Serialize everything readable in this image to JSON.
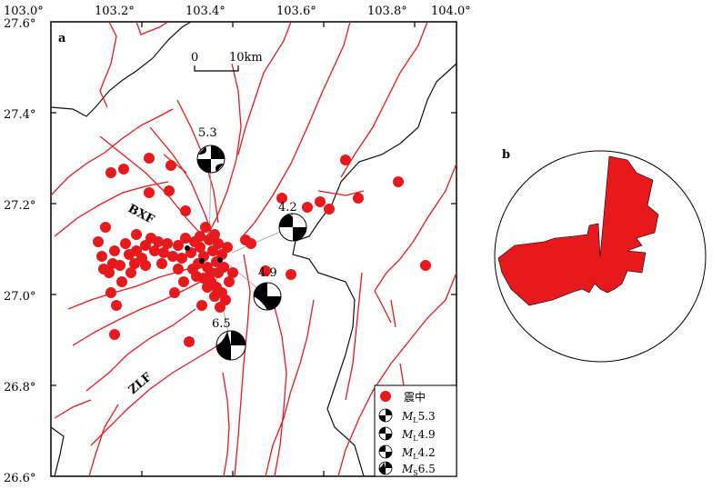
{
  "map": {
    "panel_label": "a",
    "lon_ticks": [
      "103.0°",
      "103.2°",
      "103.4°",
      "103.6°",
      "103.8°",
      "104.0°"
    ],
    "lat_ticks": [
      "27.6°",
      "27.4°",
      "27.2°",
      "27.0°",
      "26.8°",
      "26.6°"
    ],
    "scale_bar": {
      "start_label": "0",
      "end_label": "10km"
    },
    "fault_labels": [
      "BXF",
      "ZLF"
    ],
    "mechanisms": [
      {
        "label": "5.3",
        "color": "#000000"
      },
      {
        "label": "4.2",
        "color": "#000000"
      },
      {
        "label": "4.9",
        "color": "#000000"
      },
      {
        "label": "6.5",
        "color": "#000000"
      }
    ],
    "epicenter_color": "#e8191c",
    "fault_color": "#e8191c",
    "legend": {
      "epicenter": "震中",
      "items": [
        {
          "mag_type": "M",
          "sub": "L",
          "value": "5.3"
        },
        {
          "mag_type": "M",
          "sub": "L",
          "value": "4.9"
        },
        {
          "mag_type": "M",
          "sub": "L",
          "value": "4.2"
        },
        {
          "mag_type": "M",
          "sub": "S",
          "value": "6.5"
        }
      ]
    }
  },
  "rose": {
    "panel_label": "b",
    "fill_color": "#e8191c"
  }
}
